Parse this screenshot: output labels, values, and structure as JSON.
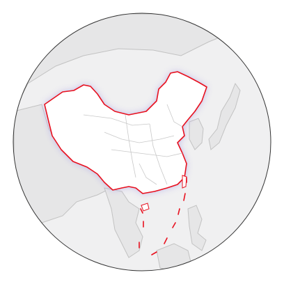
{
  "map": {
    "projection": "orthographic",
    "style": "locator-map",
    "highlighted_region": "China",
    "colors": {
      "background": "#ffffff",
      "globe_fill": "#f0f0f1",
      "globe_outline": "#333333",
      "land_fill": "#e6e6e7",
      "land_border": "#c2c2c2",
      "highlight_fill": "#ffffff",
      "highlight_glow": "#b9b0e6",
      "highlight_border": "#e8101e",
      "internal_border": "#c8c8c8"
    }
  }
}
